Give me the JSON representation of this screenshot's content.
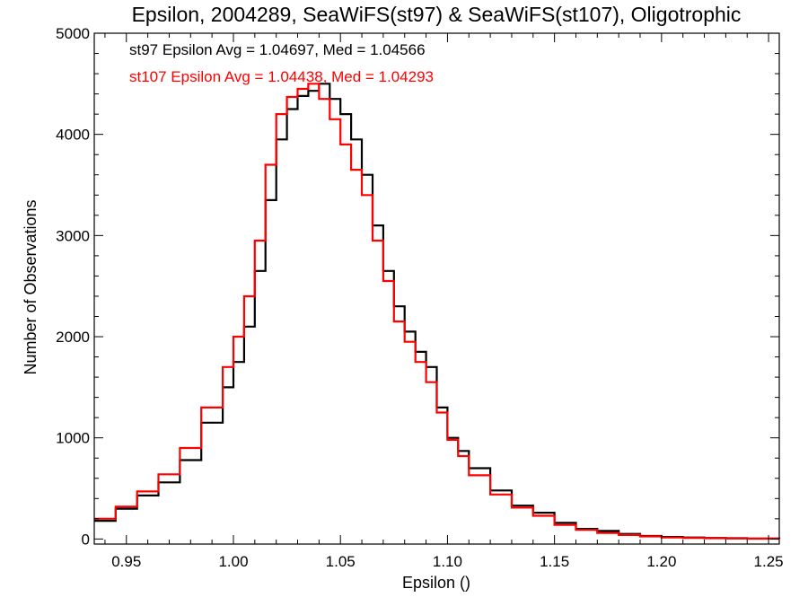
{
  "chart_data": {
    "type": "line",
    "step": true,
    "title": "Epsilon, 2004289, SeaWiFS(st97) & SeaWiFS(st107), Oligotrophic",
    "xlabel": "Epsilon ()",
    "ylabel": "Number of Observations",
    "xlim": [
      0.935,
      1.255
    ],
    "ylim": [
      -50,
      5000
    ],
    "xticks": [
      0.95,
      1.0,
      1.05,
      1.1,
      1.15,
      1.2,
      1.25
    ],
    "xtick_labels": [
      "0.95",
      "1.00",
      "1.05",
      "1.10",
      "1.15",
      "1.20",
      "1.25"
    ],
    "yticks": [
      0,
      1000,
      2000,
      3000,
      4000,
      5000
    ],
    "ytick_labels": [
      "0",
      "1000",
      "2000",
      "3000",
      "4000",
      "5000"
    ],
    "grid": false,
    "annotations": [
      {
        "text": "st97 Epsilon Avg = 1.04697, Med = 1.04566",
        "color": "#000000"
      },
      {
        "text": "st107 Epsilon Avg = 1.04438, Med = 1.04293",
        "color": "#ff0000"
      }
    ],
    "series": [
      {
        "color": "#000000",
        "x": [
          0.935,
          0.945,
          0.955,
          0.965,
          0.975,
          0.985,
          0.995,
          1.0,
          1.005,
          1.01,
          1.015,
          1.02,
          1.025,
          1.03,
          1.035,
          1.04,
          1.045,
          1.05,
          1.055,
          1.06,
          1.065,
          1.07,
          1.075,
          1.08,
          1.085,
          1.09,
          1.095,
          1.1,
          1.105,
          1.11,
          1.12,
          1.13,
          1.14,
          1.15,
          1.16,
          1.17,
          1.18,
          1.19,
          1.2,
          1.21,
          1.22,
          1.23,
          1.24,
          1.255
        ],
        "y": [
          180,
          300,
          430,
          560,
          780,
          1150,
          1500,
          1750,
          2100,
          2650,
          3350,
          3950,
          4250,
          4380,
          4430,
          4500,
          4350,
          4200,
          3950,
          3600,
          3100,
          2650,
          2300,
          2050,
          1850,
          1700,
          1300,
          1000,
          870,
          700,
          480,
          330,
          260,
          160,
          100,
          80,
          50,
          30,
          20,
          15,
          10,
          8,
          5,
          3
        ]
      },
      {
        "color": "#ff0000",
        "x": [
          0.935,
          0.945,
          0.955,
          0.965,
          0.975,
          0.985,
          0.995,
          1.0,
          1.005,
          1.01,
          1.015,
          1.02,
          1.025,
          1.03,
          1.035,
          1.04,
          1.045,
          1.05,
          1.055,
          1.06,
          1.065,
          1.07,
          1.075,
          1.08,
          1.085,
          1.09,
          1.095,
          1.1,
          1.105,
          1.11,
          1.12,
          1.13,
          1.14,
          1.15,
          1.16,
          1.17,
          1.18,
          1.19,
          1.2,
          1.21,
          1.22,
          1.23,
          1.24,
          1.255
        ],
        "y": [
          200,
          320,
          470,
          640,
          900,
          1300,
          1700,
          2000,
          2400,
          2950,
          3700,
          4200,
          4370,
          4450,
          4500,
          4350,
          4150,
          3900,
          3650,
          3400,
          2950,
          2550,
          2150,
          1950,
          1750,
          1550,
          1250,
          980,
          820,
          630,
          440,
          310,
          230,
          140,
          90,
          60,
          40,
          25,
          15,
          10,
          8,
          5,
          3,
          2
        ]
      }
    ]
  }
}
